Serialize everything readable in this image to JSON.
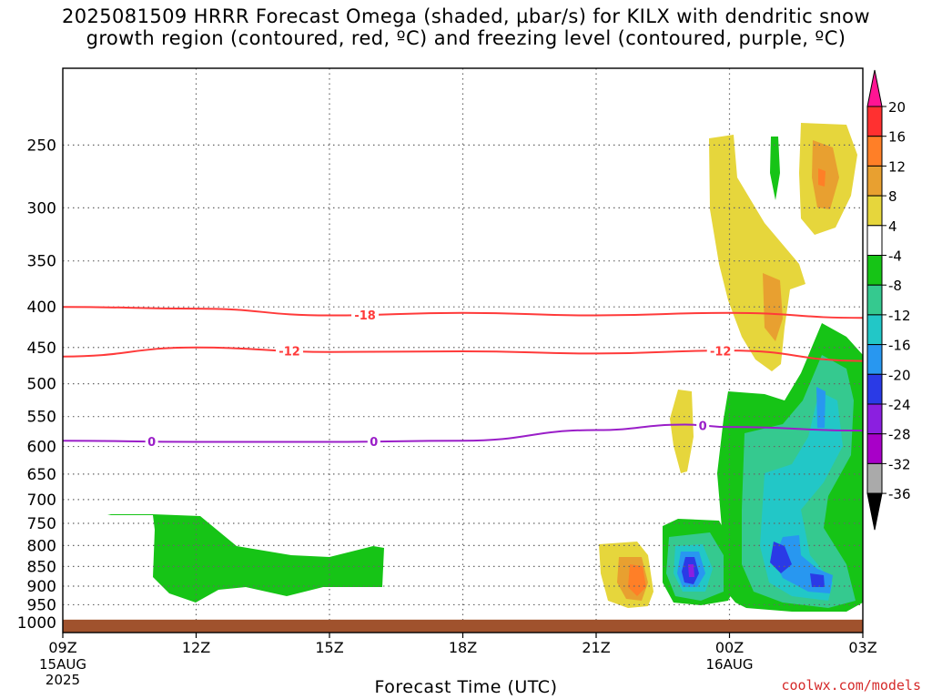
{
  "header": {
    "title_line1": "2025081509 HRRR Forecast Omega (shaded, µbar/s) for KILX with dendritic snow",
    "title_line2": "growth region (contoured, red, ºC) and freezing level (contoured, purple, ºC)"
  },
  "footer": {
    "credit": "coolwx.com/models"
  },
  "chart_data": {
    "type": "heatmap",
    "xlabel": "Forecast Time (UTC)",
    "x_ticks": [
      {
        "hour": 0,
        "label": "09Z",
        "sub1": "15AUG",
        "sub2": "2025"
      },
      {
        "hour": 3,
        "label": "12Z",
        "sub1": "",
        "sub2": ""
      },
      {
        "hour": 6,
        "label": "15Z",
        "sub1": "",
        "sub2": ""
      },
      {
        "hour": 9,
        "label": "18Z",
        "sub1": "",
        "sub2": ""
      },
      {
        "hour": 12,
        "label": "21Z",
        "sub1": "",
        "sub2": ""
      },
      {
        "hour": 15,
        "label": "00Z",
        "sub1": "16AUG",
        "sub2": ""
      },
      {
        "hour": 18,
        "label": "03Z",
        "sub1": "",
        "sub2": ""
      }
    ],
    "x_range_hours": [
      0,
      18
    ],
    "y_ticks_hPa": [
      250,
      300,
      350,
      400,
      450,
      500,
      550,
      600,
      650,
      700,
      750,
      800,
      850,
      900,
      950,
      1000
    ],
    "y_scale": "log-pressure",
    "y_range_hPa": [
      200,
      1030
    ],
    "grid": true,
    "colorbar": {
      "labels": [
        "20",
        "16",
        "12",
        "8",
        "4",
        "-4",
        "-8",
        "-12",
        "-16",
        "-20",
        "-24",
        "-28",
        "-32",
        "-36"
      ],
      "colors": [
        "#ff1493",
        "#ff3030",
        "#ff7f27",
        "#e8a030",
        "#e6d63c",
        "#ffffff",
        "#16c416",
        "#35c98f",
        "#22c7c7",
        "#2897f0",
        "#2a3ae6",
        "#8b1fe0",
        "#a800c8",
        "#aaaaaa",
        "#000000"
      ]
    },
    "fields": {
      "omega_shaded_units": "µbar/s",
      "dgz_contours": [
        {
          "label": "-18",
          "color": "#ff3a3a",
          "points": [
            [
              0,
              400
            ],
            [
              3,
              402
            ],
            [
              6,
              410
            ],
            [
              9,
              407
            ],
            [
              12,
              410
            ],
            [
              15,
              407
            ],
            [
              18,
              413
            ]
          ],
          "label_at_hours": [
            6.8
          ]
        },
        {
          "label": "-12",
          "color": "#ff3a3a",
          "points": [
            [
              0,
              462
            ],
            [
              3,
              450
            ],
            [
              6,
              456
            ],
            [
              9,
              455
            ],
            [
              12,
              458
            ],
            [
              15,
              454
            ],
            [
              18,
              468
            ]
          ],
          "label_at_hours": [
            5.1,
            14.8
          ]
        }
      ],
      "freezing_level": {
        "label": "0",
        "color": "#9a1ec8",
        "points": [
          [
            0,
            590
          ],
          [
            3,
            592
          ],
          [
            6,
            592
          ],
          [
            9,
            590
          ],
          [
            12,
            572
          ],
          [
            14,
            563
          ],
          [
            15,
            567
          ],
          [
            18,
            573
          ]
        ],
        "label_at_hours": [
          2,
          7,
          14.4
        ]
      },
      "ground_band_hPa": 1000
    }
  }
}
